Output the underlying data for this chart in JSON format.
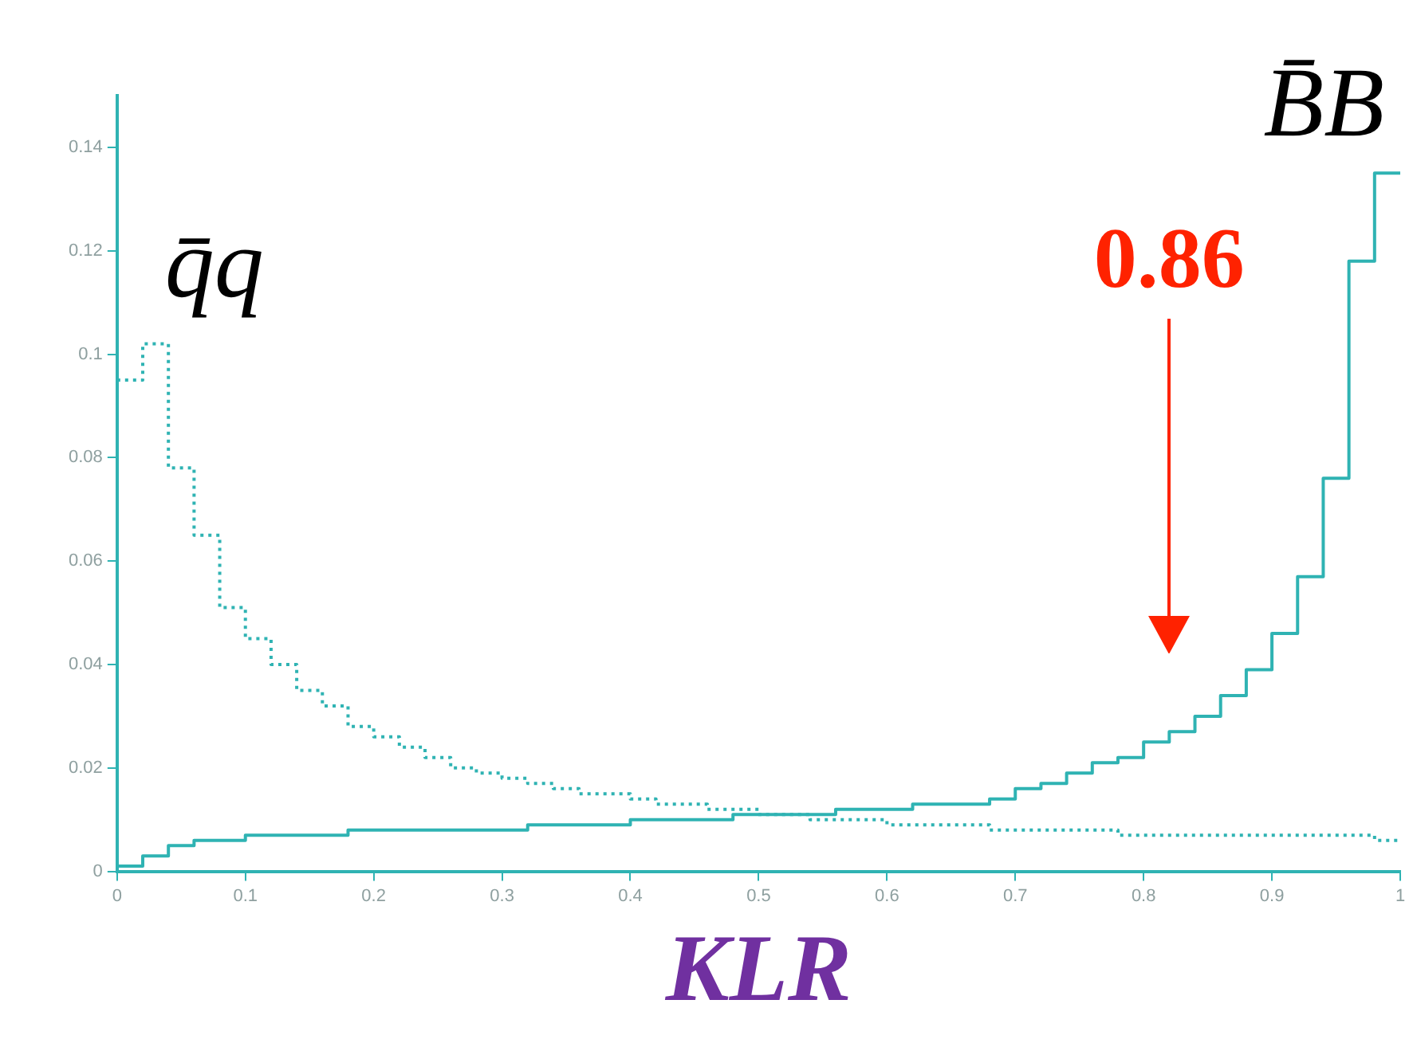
{
  "chart_data": {
    "type": "histogram",
    "xlabel": "KLR",
    "bins": [
      0,
      0.02,
      0.04,
      0.06,
      0.08,
      0.1,
      0.12,
      0.14,
      0.16,
      0.18,
      0.2,
      0.22,
      0.24,
      0.26,
      0.28,
      0.3,
      0.32,
      0.34,
      0.36,
      0.38,
      0.4,
      0.42,
      0.44,
      0.46,
      0.48,
      0.5,
      0.52,
      0.54,
      0.56,
      0.58,
      0.6,
      0.62,
      0.64,
      0.66,
      0.68,
      0.7,
      0.72,
      0.74,
      0.76,
      0.78,
      0.8,
      0.82,
      0.84,
      0.86,
      0.88,
      0.9,
      0.92,
      0.94,
      0.96,
      0.98,
      1
    ],
    "series": [
      {
        "name": "q̄q",
        "color": "#2fb3b3",
        "line_style": "dotted",
        "values": [
          0.095,
          0.102,
          0.078,
          0.065,
          0.051,
          0.045,
          0.04,
          0.035,
          0.032,
          0.028,
          0.026,
          0.024,
          0.022,
          0.02,
          0.019,
          0.018,
          0.017,
          0.016,
          0.015,
          0.015,
          0.014,
          0.013,
          0.013,
          0.012,
          0.012,
          0.011,
          0.011,
          0.01,
          0.01,
          0.01,
          0.009,
          0.009,
          0.009,
          0.009,
          0.008,
          0.008,
          0.008,
          0.008,
          0.008,
          0.007,
          0.007,
          0.007,
          0.007,
          0.007,
          0.007,
          0.007,
          0.007,
          0.007,
          0.007,
          0.006
        ]
      },
      {
        "name": "B̄B",
        "color": "#2fb3b3",
        "line_style": "solid",
        "values": [
          0.001,
          0.003,
          0.005,
          0.006,
          0.006,
          0.007,
          0.007,
          0.007,
          0.007,
          0.008,
          0.008,
          0.008,
          0.008,
          0.008,
          0.008,
          0.008,
          0.009,
          0.009,
          0.009,
          0.009,
          0.01,
          0.01,
          0.01,
          0.01,
          0.011,
          0.011,
          0.011,
          0.011,
          0.012,
          0.012,
          0.012,
          0.013,
          0.013,
          0.013,
          0.014,
          0.016,
          0.017,
          0.019,
          0.021,
          0.022,
          0.025,
          0.027,
          0.03,
          0.034,
          0.039,
          0.046,
          0.057,
          0.076,
          0.118,
          0.135
        ]
      }
    ],
    "annotations": [
      "0.86"
    ],
    "xlim": [
      0,
      1
    ],
    "xticks": [
      0,
      0.1,
      0.2,
      0.3,
      0.4,
      0.5,
      0.6,
      0.7,
      0.8,
      0.9,
      1
    ],
    "ylim": [
      0,
      0.15
    ],
    "yticks": [
      0,
      0.02,
      0.04,
      0.06,
      0.08,
      0.1,
      0.12,
      0.14
    ],
    "grid": false,
    "legend": false
  }
}
